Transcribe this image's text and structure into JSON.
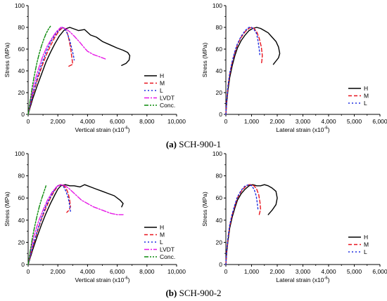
{
  "captions": [
    {
      "tag": "(a)",
      "text": " SCH-900-1"
    },
    {
      "tag": "(b)",
      "text": " SCH-900-2"
    }
  ],
  "colors": {
    "H": "#000000",
    "M": "#e8141e",
    "L": "#1f2fe0",
    "LVDT": "#e619e6",
    "Conc.": "#0a8a0a"
  },
  "chart_data": [
    {
      "type": "line",
      "xlabel": "Vertical strain (x10",
      "xlabel_exp": "-6",
      "xlabel_end": ")",
      "ylabel": "Stress (MPa)",
      "xlim": [
        0,
        10000
      ],
      "ylim": [
        0,
        100
      ],
      "xticks": [
        "0",
        "2,000",
        "4,000",
        "6,000",
        "8,000",
        "10,000"
      ],
      "yticks": [
        "0",
        "20",
        "40",
        "60",
        "80",
        "100"
      ],
      "legend_position": "right-center",
      "series": [
        {
          "name": "H",
          "x": [
            0,
            300,
            600,
            900,
            1200,
            1500,
            1800,
            2100,
            2400,
            2600,
            2800,
            3000,
            3400,
            3800,
            4200,
            4600,
            5000,
            5500,
            6000,
            6400,
            6700,
            6850,
            6800,
            6600,
            6300
          ],
          "y": [
            0,
            14,
            26,
            37,
            48,
            57,
            65,
            72,
            77,
            79,
            80,
            79,
            77,
            78,
            73,
            71,
            67,
            64,
            61,
            59,
            57,
            54,
            50,
            47,
            45
          ]
        },
        {
          "name": "M",
          "x": [
            0,
            300,
            600,
            900,
            1200,
            1500,
            1800,
            2100,
            2350,
            2550,
            2700,
            2850,
            2950,
            3000,
            2850,
            2700
          ],
          "y": [
            0,
            17,
            31,
            43,
            54,
            63,
            71,
            77,
            80,
            78,
            72,
            62,
            52,
            46,
            45,
            44
          ]
        },
        {
          "name": "L",
          "x": [
            0,
            300,
            600,
            900,
            1200,
            1500,
            1800,
            2100,
            2300,
            2500,
            2650,
            2800,
            2950,
            3050,
            3100
          ],
          "y": [
            0,
            18,
            33,
            46,
            57,
            66,
            73,
            78,
            80,
            78,
            74,
            68,
            60,
            54,
            50
          ]
        },
        {
          "name": "LVDT",
          "x": [
            0,
            200,
            400,
            700,
            1000,
            1300,
            1600,
            1900,
            2200,
            2500,
            2800,
            3100,
            3500,
            3800,
            4000,
            4400,
            4800,
            5200
          ],
          "y": [
            0,
            15,
            28,
            42,
            54,
            63,
            70,
            76,
            80,
            79,
            76,
            72,
            66,
            61,
            58,
            55,
            53,
            51
          ]
        },
        {
          "name": "Conc.",
          "x": [
            0,
            150,
            300,
            450,
            600,
            750,
            900,
            1050,
            1200,
            1350,
            1500
          ],
          "y": [
            0,
            14,
            27,
            38,
            48,
            56,
            63,
            69,
            74,
            78,
            81
          ]
        }
      ]
    },
    {
      "type": "line",
      "xlabel": "Lateral strain (x10",
      "xlabel_exp": "-6",
      "xlabel_end": ")",
      "ylabel": "Stress (MPa)",
      "xlim": [
        0,
        6000
      ],
      "ylim": [
        0,
        100
      ],
      "xticks": [
        "0",
        "1,000",
        "2,000",
        "3,000",
        "4,000",
        "5,000",
        "6,000"
      ],
      "yticks": [
        "0",
        "20",
        "40",
        "60",
        "80",
        "100"
      ],
      "legend_position": "bottom-right",
      "series": [
        {
          "name": "H",
          "x": [
            0,
            30,
            80,
            150,
            250,
            350,
            450,
            600,
            750,
            900,
            1050,
            1200,
            1350,
            1500,
            1650,
            1800,
            1950,
            2050,
            2100,
            2050,
            1950,
            1850
          ],
          "y": [
            0,
            10,
            22,
            34,
            45,
            54,
            61,
            68,
            73,
            77,
            79,
            80,
            79,
            77,
            75,
            71,
            67,
            62,
            56,
            52,
            49,
            46
          ]
        },
        {
          "name": "M",
          "x": [
            0,
            30,
            80,
            150,
            250,
            350,
            450,
            600,
            750,
            900,
            1000,
            1100,
            1200,
            1300,
            1380,
            1420,
            1400,
            1380
          ],
          "y": [
            0,
            12,
            25,
            37,
            48,
            57,
            64,
            71,
            76,
            79,
            80,
            79,
            76,
            70,
            62,
            54,
            49,
            46
          ]
        },
        {
          "name": "L",
          "x": [
            0,
            30,
            80,
            150,
            250,
            350,
            450,
            600,
            750,
            900,
            1000,
            1100,
            1200,
            1250,
            1300,
            1320
          ],
          "y": [
            0,
            12,
            26,
            38,
            49,
            58,
            65,
            72,
            77,
            80,
            80,
            78,
            74,
            68,
            60,
            55
          ]
        }
      ]
    },
    {
      "type": "line",
      "xlabel": "Vertical strain (x10",
      "xlabel_exp": "-6",
      "xlabel_end": ")",
      "ylabel": "Stress (MPa)",
      "xlim": [
        0,
        10000
      ],
      "ylim": [
        0,
        100
      ],
      "xticks": [
        "0",
        "2,000",
        "4,000",
        "6,000",
        "8,000",
        "10,000"
      ],
      "yticks": [
        "0",
        "20",
        "40",
        "60",
        "80",
        "100"
      ],
      "legend_position": "right-center",
      "series": [
        {
          "name": "H",
          "x": [
            0,
            300,
            600,
            900,
            1200,
            1500,
            1800,
            2000,
            2200,
            2500,
            2800,
            3100,
            3500,
            3800,
            4200,
            4600,
            5000,
            5400,
            5800,
            6200,
            6400,
            6300
          ],
          "y": [
            0,
            13,
            25,
            36,
            46,
            55,
            63,
            68,
            71,
            72,
            71,
            71,
            70,
            72,
            70,
            68,
            66,
            64,
            62,
            58,
            55,
            52
          ]
        },
        {
          "name": "M",
          "x": [
            0,
            300,
            600,
            900,
            1200,
            1500,
            1800,
            2000,
            2200,
            2400,
            2550,
            2700,
            2800,
            2850,
            2750,
            2600
          ],
          "y": [
            0,
            15,
            29,
            41,
            51,
            60,
            67,
            71,
            72,
            71,
            69,
            64,
            58,
            52,
            49,
            47
          ]
        },
        {
          "name": "L",
          "x": [
            0,
            300,
            600,
            900,
            1200,
            1500,
            1800,
            2000,
            2200,
            2400,
            2550,
            2700,
            2800,
            2850
          ],
          "y": [
            0,
            16,
            30,
            42,
            53,
            61,
            68,
            71,
            72,
            70,
            66,
            60,
            53,
            48
          ]
        },
        {
          "name": "LVDT",
          "x": [
            0,
            200,
            400,
            700,
            1000,
            1300,
            1600,
            1900,
            2200,
            2500,
            2800,
            3200,
            3600,
            4000,
            4400,
            4800,
            5200,
            5600,
            6000,
            6400
          ],
          "y": [
            0,
            14,
            26,
            39,
            49,
            58,
            65,
            70,
            72,
            71,
            68,
            63,
            58,
            55,
            52,
            50,
            48,
            46,
            45,
            45
          ]
        },
        {
          "name": "Conc.",
          "x": [
            0,
            150,
            300,
            450,
            600,
            750,
            900,
            1050,
            1150,
            1200
          ],
          "y": [
            0,
            13,
            25,
            35,
            44,
            52,
            59,
            65,
            69,
            71
          ]
        }
      ]
    },
    {
      "type": "line",
      "xlabel": "Lateral strain (x10",
      "xlabel_exp": "-6",
      "xlabel_end": ")",
      "ylabel": "Stress (MPa)",
      "xlim": [
        0,
        6000
      ],
      "ylim": [
        0,
        100
      ],
      "xticks": [
        "0",
        "1,000",
        "2,000",
        "3,000",
        "4,000",
        "5,000",
        "6,000"
      ],
      "yticks": [
        "0",
        "20",
        "40",
        "60",
        "80",
        "100"
      ],
      "legend_position": "bottom-right",
      "series": [
        {
          "name": "H",
          "x": [
            0,
            30,
            80,
            150,
            250,
            350,
            450,
            600,
            750,
            900,
            1050,
            1200,
            1350,
            1500,
            1650,
            1800,
            1950,
            2000,
            1950,
            1800,
            1650
          ],
          "y": [
            0,
            10,
            21,
            33,
            43,
            51,
            58,
            64,
            68,
            71,
            72,
            71,
            71,
            72,
            71,
            69,
            66,
            60,
            54,
            49,
            45
          ]
        },
        {
          "name": "M",
          "x": [
            0,
            30,
            80,
            150,
            250,
            350,
            450,
            600,
            750,
            900,
            1000,
            1100,
            1200,
            1280,
            1330,
            1350,
            1320,
            1300
          ],
          "y": [
            0,
            11,
            23,
            35,
            45,
            53,
            60,
            66,
            70,
            72,
            72,
            71,
            68,
            63,
            56,
            50,
            47,
            45
          ]
        },
        {
          "name": "L",
          "x": [
            0,
            30,
            80,
            150,
            250,
            350,
            450,
            600,
            750,
            900,
            1000,
            1100,
            1180,
            1220,
            1250
          ],
          "y": [
            0,
            12,
            24,
            36,
            46,
            54,
            61,
            67,
            71,
            72,
            71,
            68,
            62,
            56,
            50
          ]
        }
      ]
    }
  ]
}
